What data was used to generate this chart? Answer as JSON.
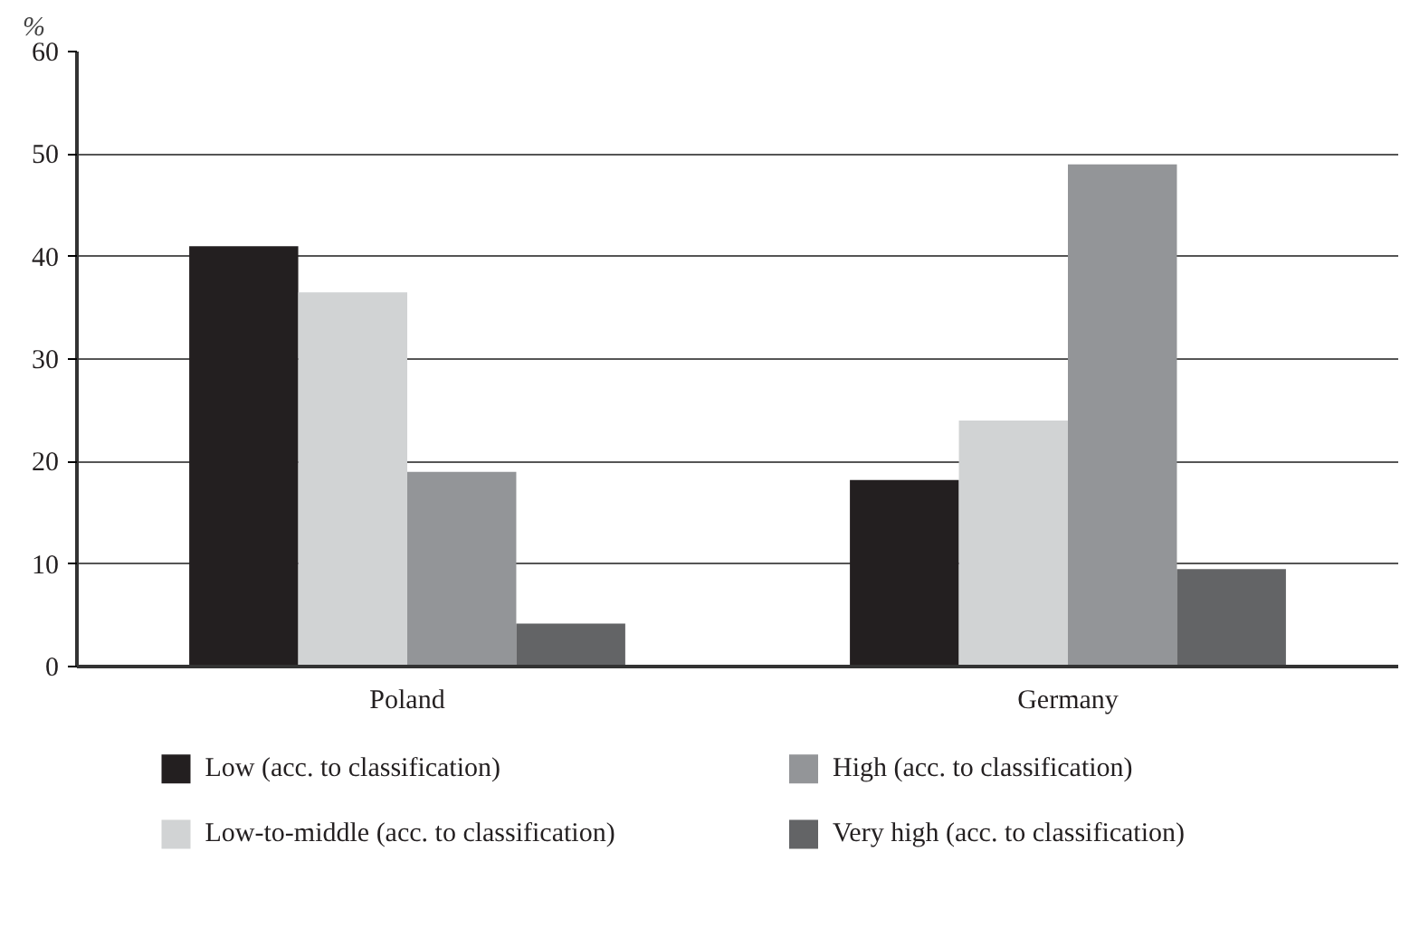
{
  "chart_data": {
    "type": "bar",
    "ylabel": "%",
    "categories": [
      "Poland",
      "Germany"
    ],
    "series": [
      {
        "name": "Low (acc. to classification)",
        "color": "#231f20",
        "values": [
          41,
          18.2
        ]
      },
      {
        "name": "Low-to-middle (acc. to classification)",
        "color": "#d1d3d4",
        "values": [
          36.5,
          24
        ]
      },
      {
        "name": "High (acc. to classification)",
        "color": "#939598",
        "values": [
          19,
          49
        ]
      },
      {
        "name": "Very high (acc. to classification)",
        "color": "#636466",
        "values": [
          4.2,
          9.5
        ]
      }
    ],
    "ylim": [
      0,
      60
    ],
    "yticks": [
      0,
      10,
      20,
      30,
      40,
      50,
      60
    ],
    "grid": "y",
    "legend": "bottom"
  }
}
